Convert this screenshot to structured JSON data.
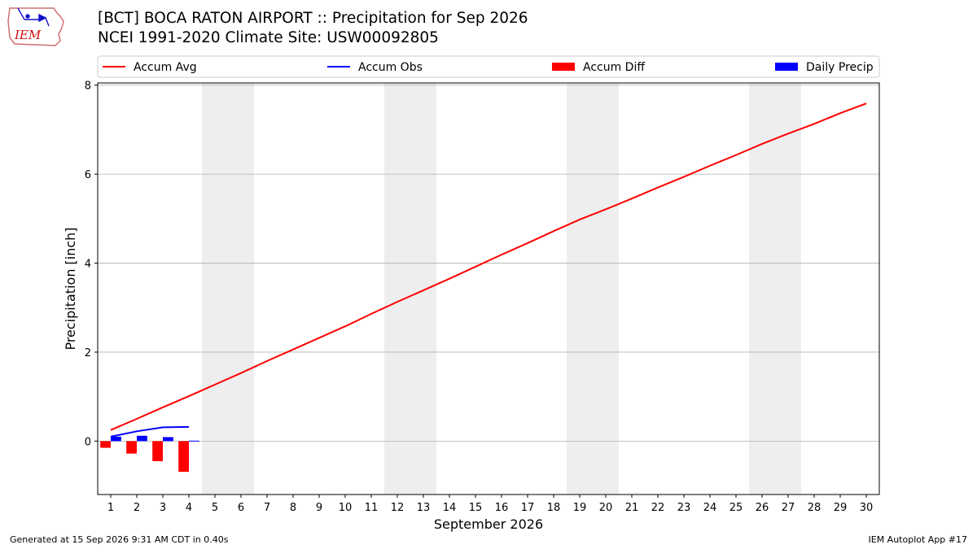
{
  "header": {
    "title_line1": "[BCT] BOCA RATON AIRPORT :: Precipitation for Sep 2026",
    "title_line2": "NCEI 1991-2020 Climate Site: USW00092805",
    "logo_text": "IEM"
  },
  "footer": {
    "generated": "Generated at 15 Sep 2026 9:31 AM CDT in 0.40s",
    "app": "IEM Autoplot App #17"
  },
  "chart_data": {
    "type": "line",
    "title": "[BCT] BOCA RATON AIRPORT :: Precipitation for Sep 2026",
    "subtitle": "NCEI 1991-2020 Climate Site: USW00092805",
    "xlabel": "September 2026",
    "ylabel": "Precipitation [inch]",
    "xlim": [
      0.5,
      30.5
    ],
    "ylim": [
      -1.2,
      8.05
    ],
    "x_ticks": [
      1,
      2,
      3,
      4,
      5,
      6,
      7,
      8,
      9,
      10,
      11,
      12,
      13,
      14,
      15,
      16,
      17,
      18,
      19,
      20,
      21,
      22,
      23,
      24,
      25,
      26,
      27,
      28,
      29,
      30
    ],
    "y_ticks": [
      0,
      2,
      4,
      6,
      8
    ],
    "grid": "horizontal",
    "legend_position": "top",
    "weekend_shading": [
      [
        4.5,
        6.5
      ],
      [
        11.5,
        13.5
      ],
      [
        18.5,
        20.5
      ],
      [
        25.5,
        27.5
      ]
    ],
    "series": [
      {
        "name": "Accum Avg",
        "kind": "line",
        "color": "#ff0000",
        "x": [
          1,
          2,
          3,
          4,
          5,
          6,
          7,
          8,
          9,
          10,
          11,
          12,
          13,
          14,
          15,
          16,
          17,
          18,
          19,
          20,
          21,
          22,
          23,
          24,
          25,
          26,
          27,
          28,
          29,
          30
        ],
        "values": [
          0.25,
          0.5,
          0.76,
          1.01,
          1.27,
          1.53,
          1.8,
          2.06,
          2.32,
          2.58,
          2.86,
          3.13,
          3.39,
          3.65,
          3.92,
          4.19,
          4.45,
          4.72,
          4.98,
          5.21,
          5.45,
          5.7,
          5.94,
          6.19,
          6.43,
          6.68,
          6.91,
          7.13,
          7.37,
          7.59
        ]
      },
      {
        "name": "Accum Obs",
        "kind": "line",
        "color": "#0000ff",
        "x": [
          1,
          2,
          3,
          4
        ],
        "values": [
          0.1,
          0.22,
          0.31,
          0.32
        ]
      },
      {
        "name": "Accum Diff",
        "kind": "bar",
        "color": "#ff0000",
        "x": [
          1,
          2,
          3,
          4
        ],
        "values": [
          -0.15,
          -0.28,
          -0.45,
          -0.69
        ]
      },
      {
        "name": "Daily Precip",
        "kind": "bar",
        "color": "#0000ff",
        "x": [
          1,
          2,
          3,
          4
        ],
        "values": [
          0.1,
          0.12,
          0.09,
          0.01
        ]
      }
    ]
  }
}
